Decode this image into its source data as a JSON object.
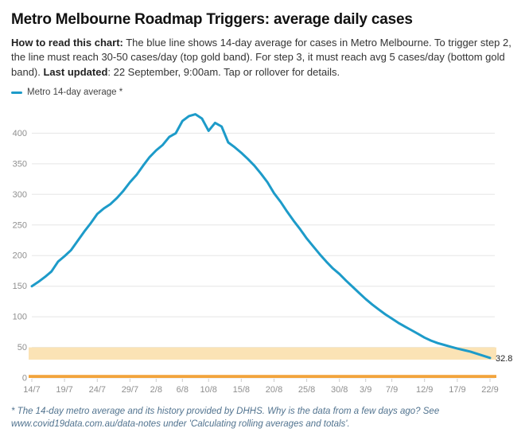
{
  "title": "Metro Melbourne Roadmap Triggers: average daily cases",
  "description": {
    "bold1": "How to read this chart:",
    "text1": " The blue line shows 14-day average for cases in Metro Melbourne. To trigger step 2, the line must reach 30-50 cases/day (top gold band). For step 3, it must reach avg 5 cases/day (bottom gold band). ",
    "bold2": "Last updated",
    "text2": ": 22 September, 9:00am. Tap or rollover for details."
  },
  "legend": {
    "label": "Metro 14-day average *",
    "color": "#1d9bc9"
  },
  "footnote": "* The 14-day metro average and its history provided by DHHS. Why is the data from a few days ago? See www.covid19data.com.au/data-notes under 'Calculating rolling averages and totals'.",
  "chart_data": {
    "type": "line",
    "title": "Metro Melbourne Roadmap Triggers: average daily cases",
    "xlabel": "",
    "ylabel": "",
    "ylim": [
      0,
      450
    ],
    "y_ticks": [
      0,
      50,
      100,
      150,
      200,
      250,
      300,
      350,
      400
    ],
    "grid": true,
    "legend_position": "top-left",
    "x_start": "14/7",
    "x_end": "22/9",
    "x_ticks": [
      {
        "label": "14/7",
        "i": 0
      },
      {
        "label": "19/7",
        "i": 5
      },
      {
        "label": "24/7",
        "i": 10
      },
      {
        "label": "29/7",
        "i": 15
      },
      {
        "label": "2/8",
        "i": 19
      },
      {
        "label": "6/8",
        "i": 23
      },
      {
        "label": "10/8",
        "i": 27
      },
      {
        "label": "15/8",
        "i": 32
      },
      {
        "label": "20/8",
        "i": 37
      },
      {
        "label": "25/8",
        "i": 42
      },
      {
        "label": "30/8",
        "i": 47
      },
      {
        "label": "3/9",
        "i": 51
      },
      {
        "label": "7/9",
        "i": 55
      },
      {
        "label": "12/9",
        "i": 60
      },
      {
        "label": "17/9",
        "i": 65
      },
      {
        "label": "22/9",
        "i": 70
      }
    ],
    "series": [
      {
        "name": "Metro 14-day average",
        "color": "#1d9bc9",
        "values": [
          150,
          157,
          165,
          174,
          190,
          199,
          209,
          224,
          239,
          253,
          268,
          277,
          284,
          294,
          306,
          320,
          332,
          347,
          361,
          372,
          381,
          394,
          400,
          420,
          428,
          431,
          424,
          404,
          417,
          411,
          385,
          377,
          368,
          358,
          347,
          334,
          320,
          302,
          288,
          272,
          257,
          243,
          228,
          215,
          202,
          190,
          179,
          170,
          159,
          149,
          139,
          129,
          120,
          112,
          104,
          97,
          90,
          84,
          78,
          72,
          66,
          61,
          57,
          54,
          51,
          48,
          45.5,
          43,
          39.6,
          36.2,
          32.8
        ]
      }
    ],
    "bands": [
      {
        "label": "top gold band - step 2 trigger (30-50 cases/day)",
        "from": 30,
        "to": 50,
        "color": "#fbe3b5"
      },
      {
        "label": "bottom gold band - step 3 trigger (avg 5 cases/day)",
        "from": 0,
        "to": 5,
        "color": "#f2a43c"
      }
    ],
    "end_label": "32.8"
  }
}
